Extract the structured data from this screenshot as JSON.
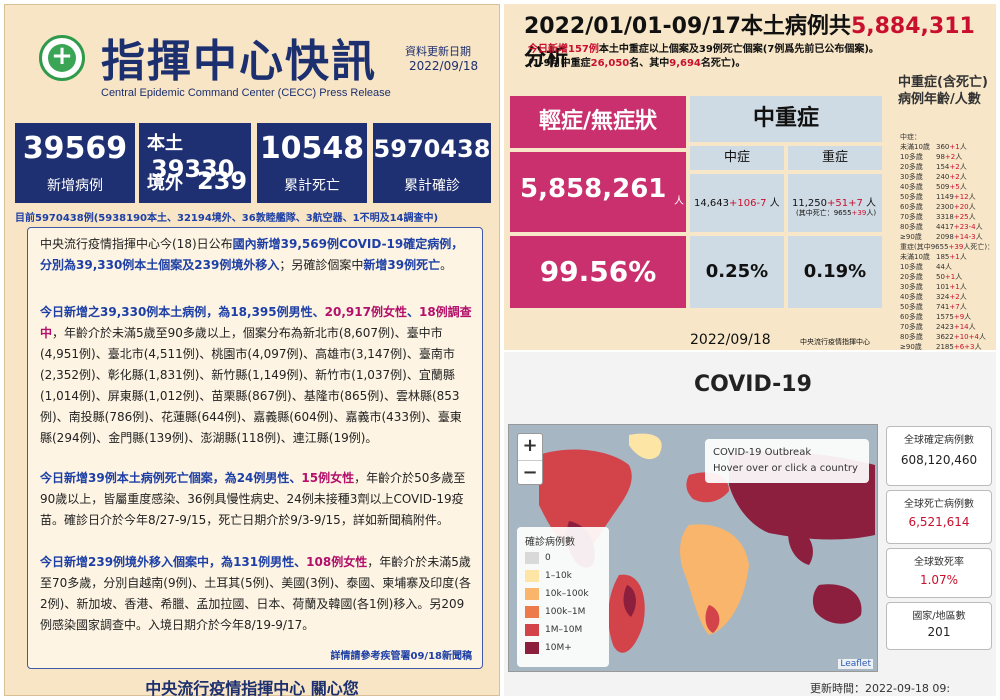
{
  "left": {
    "title": "指揮中心快訊",
    "update_label": "資料更新日期",
    "update_date": "2022/09/18",
    "subtitle": "Central Epidemic Command Center (CECC)  Press Release",
    "stats": {
      "new_cases": "39569",
      "new_cases_label": "新增病例",
      "local_label": "本土",
      "local_value": "39330",
      "imported_label": "境外",
      "imported_value": "239",
      "deaths": "10548",
      "deaths_label": "累計死亡",
      "confirmed": "5970438",
      "confirmed_label": "累計確診"
    },
    "stats_note": "目前5970438例(5938190本土、32194境外、36敦睦艦隊、3航空器、1不明及14調查中)",
    "para1": {
      "a": "中央流行疫情指揮中心今(18)日公布",
      "b": "國內新增39,569例COVID-19確定病例，分別為39,330例本土個案及239例境外移入",
      "c": "；另確診個案中",
      "d": "新增39例死亡",
      "e": "。"
    },
    "para2": {
      "a": "今日新增之39,330例本土病例，為",
      "b": "18,395例男性",
      "c": "、",
      "d": "20,917例女性",
      "e": "、",
      "f": "18例調查中",
      "g": "，年齡介於未滿5歲至90多歲以上，個案分布為新北市(8,607例)、臺中市(4,951例)、臺北市(4,511例)、桃園市(4,097例)、高雄市(3,147例)、臺南市(2,352例)、彰化縣(1,831例)、新竹縣(1,149例)、新竹市(1,037例)、宜蘭縣(1,014例)、屏東縣(1,012例)、苗栗縣(867例)、基隆市(865例)、雲林縣(853例)、南投縣(786例)、花蓮縣(644例)、嘉義縣(604例)、嘉義市(433例)、臺東縣(294例)、金門縣(139例)、澎湖縣(118例)、連江縣(19例)。"
    },
    "para3": {
      "a": "今日新增39例本土病例死亡個案，為",
      "b": "24例男性",
      "c": "、",
      "d": "15例女性",
      "e": "，年齡介於50多歲至90歲以上，皆屬重度感染、36例具慢性病史、24例未接種3劑以上COVID-19疫苗。確診日介於今年8/27-9/15，死亡日期介於9/3-9/15，詳如新聞稿附件。"
    },
    "para4": {
      "a": "今日新增239例境外移入個案中，為",
      "b": "131例男性",
      "c": "、",
      "d": "108例女性",
      "e": "，年齡介於未滿5歲至70多歲，分別自越南(9例)、土耳其(5例)、美國(3例)、泰國、柬埔寨及印度(各2例)、新加坡、香港、希臘、孟加拉國、日本、荷蘭及韓國(各1例)移入。另209例感染國家調查中。入境日期介於今年8/19-9/17。"
    },
    "more": "詳情請參考疾管署09/18新聞稿",
    "footer": "中央流行疫情指揮中心  關心您"
  },
  "right_top": {
    "title_a": "2022/01/01-09/17本土病例共",
    "title_b": "5,884,311",
    "title_c": "分析",
    "line1_a": "今日新增157例",
    "line1_b": "本土中重症以上個案及39例死亡個案(7例爲先前已公布個案)。",
    "line2_a": "(1-9月中重症",
    "line2_b": "26,050",
    "line2_c": "名、其中",
    "line2_d": "9,694",
    "line2_e": "名死亡)。",
    "mild_header": "輕症/無症狀",
    "mild_value": "5,858,261",
    "mild_unit": "人",
    "mild_pct": "99.56%",
    "severe_header": "中重症",
    "moderate_label": "中症",
    "moderate_value": "14,643",
    "moderate_add": "+106",
    "moderate_sub": "-7",
    "moderate_unit": "人",
    "moderate_pct": "0.25%",
    "severe_label": "重症",
    "severe_value": "11,250",
    "severe_add": "+51",
    "severe_add2": "+7",
    "severe_unit": "人",
    "severe_note_a": "(其中死亡：9655",
    "severe_note_b": "+39",
    "severe_note_c": "人)",
    "severe_pct": "0.19%",
    "date": "2022/09/18",
    "source": "中央流行疫情指揮中心",
    "age_header": "中重症(含死亡)病例年齡/人數",
    "age_sec1": "中症：",
    "age_rows1": [
      {
        "age": "未滿10歲",
        "n": "360",
        "d": "+1",
        "u": "人"
      },
      {
        "age": "10多歲",
        "n": "98",
        "d": "+2",
        "u": "人"
      },
      {
        "age": "20多歲",
        "n": "154",
        "d": "+2",
        "u": "人"
      },
      {
        "age": "30多歲",
        "n": "240",
        "d": "+2",
        "u": "人"
      },
      {
        "age": "40多歲",
        "n": "509",
        "d": "+5",
        "u": "人"
      },
      {
        "age": "50多歲",
        "n": "1149",
        "d": "+12",
        "u": "人"
      },
      {
        "age": "60多歲",
        "n": "2300",
        "d": "+20",
        "u": "人"
      },
      {
        "age": "70多歲",
        "n": "3318",
        "d": "+25",
        "u": "人"
      },
      {
        "age": "80多歲",
        "n": "4417",
        "d": "+23-4",
        "u": "人"
      },
      {
        "age": "≥90歲",
        "n": "2098",
        "d": "+14-3",
        "u": "人"
      }
    ],
    "age_sec2_a": "重症(其中9655",
    "age_sec2_b": "+39",
    "age_sec2_c": "人死亡)：",
    "age_rows2": [
      {
        "age": "未滿10歲",
        "n": "185",
        "d": "+1",
        "u": "人"
      },
      {
        "age": "10多歲",
        "n": "44",
        "d": "",
        "u": "人"
      },
      {
        "age": "20多歲",
        "n": "50",
        "d": "+1",
        "u": "人"
      },
      {
        "age": "30多歲",
        "n": "101",
        "d": "+1",
        "u": "人"
      },
      {
        "age": "40多歲",
        "n": "324",
        "d": "+2",
        "u": "人"
      },
      {
        "age": "50多歲",
        "n": "741",
        "d": "+7",
        "u": "人"
      },
      {
        "age": "60多歲",
        "n": "1575",
        "d": "+9",
        "u": "人"
      },
      {
        "age": "70多歲",
        "n": "2423",
        "d": "+14",
        "u": "人"
      },
      {
        "age": "80多歲",
        "n": "3622",
        "d": "+10+4",
        "u": "人"
      },
      {
        "age": "≥90歲",
        "n": "2185",
        "d": "+6+3",
        "u": "人"
      }
    ]
  },
  "right_bottom": {
    "title": "COVID-19",
    "zoom_in": "+",
    "zoom_out": "−",
    "tip_title": "COVID-19 Outbreak",
    "tip_hint": "Hover over or click a country",
    "legend_title": "確診病例數",
    "legend": [
      {
        "label": "0",
        "color": "#d9d9d9"
      },
      {
        "label": "1–10k",
        "color": "#fde5a6"
      },
      {
        "label": "10k–100k",
        "color": "#f8b56b"
      },
      {
        "label": "100k–1M",
        "color": "#ec7a4b"
      },
      {
        "label": "1M–10M",
        "color": "#d3434a"
      },
      {
        "label": "10M+",
        "color": "#8c1f3e"
      }
    ],
    "attribution": "Leaflet",
    "global_confirmed_label": "全球確定病例數",
    "global_confirmed": "608,120,460",
    "global_deaths_label": "全球死亡病例數",
    "global_deaths": "6,521,614",
    "global_cfr_label": "全球致死率",
    "global_cfr": "1.07%",
    "countries_label": "國家/地區數",
    "countries": "201",
    "updated": "更新時間：2022-09-18 09:"
  }
}
